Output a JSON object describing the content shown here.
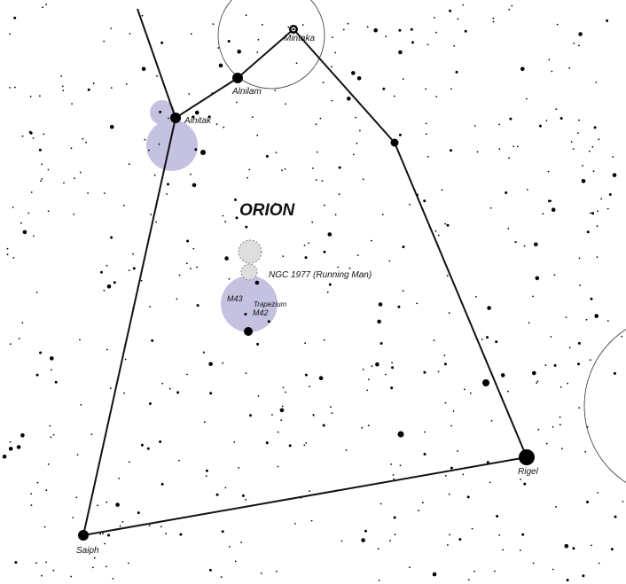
{
  "constellation": "ORION",
  "stars": {
    "mintaka": "Mintaka",
    "alnilam": "Alnilam",
    "alnitak": "Alnitak",
    "rigel": "Rigel",
    "saiph": "Saiph"
  },
  "objects": {
    "ngc1977": "NGC 1977 (Running Man)",
    "m43": "M43",
    "m42": "M42",
    "trapezium": "Trapezium"
  }
}
